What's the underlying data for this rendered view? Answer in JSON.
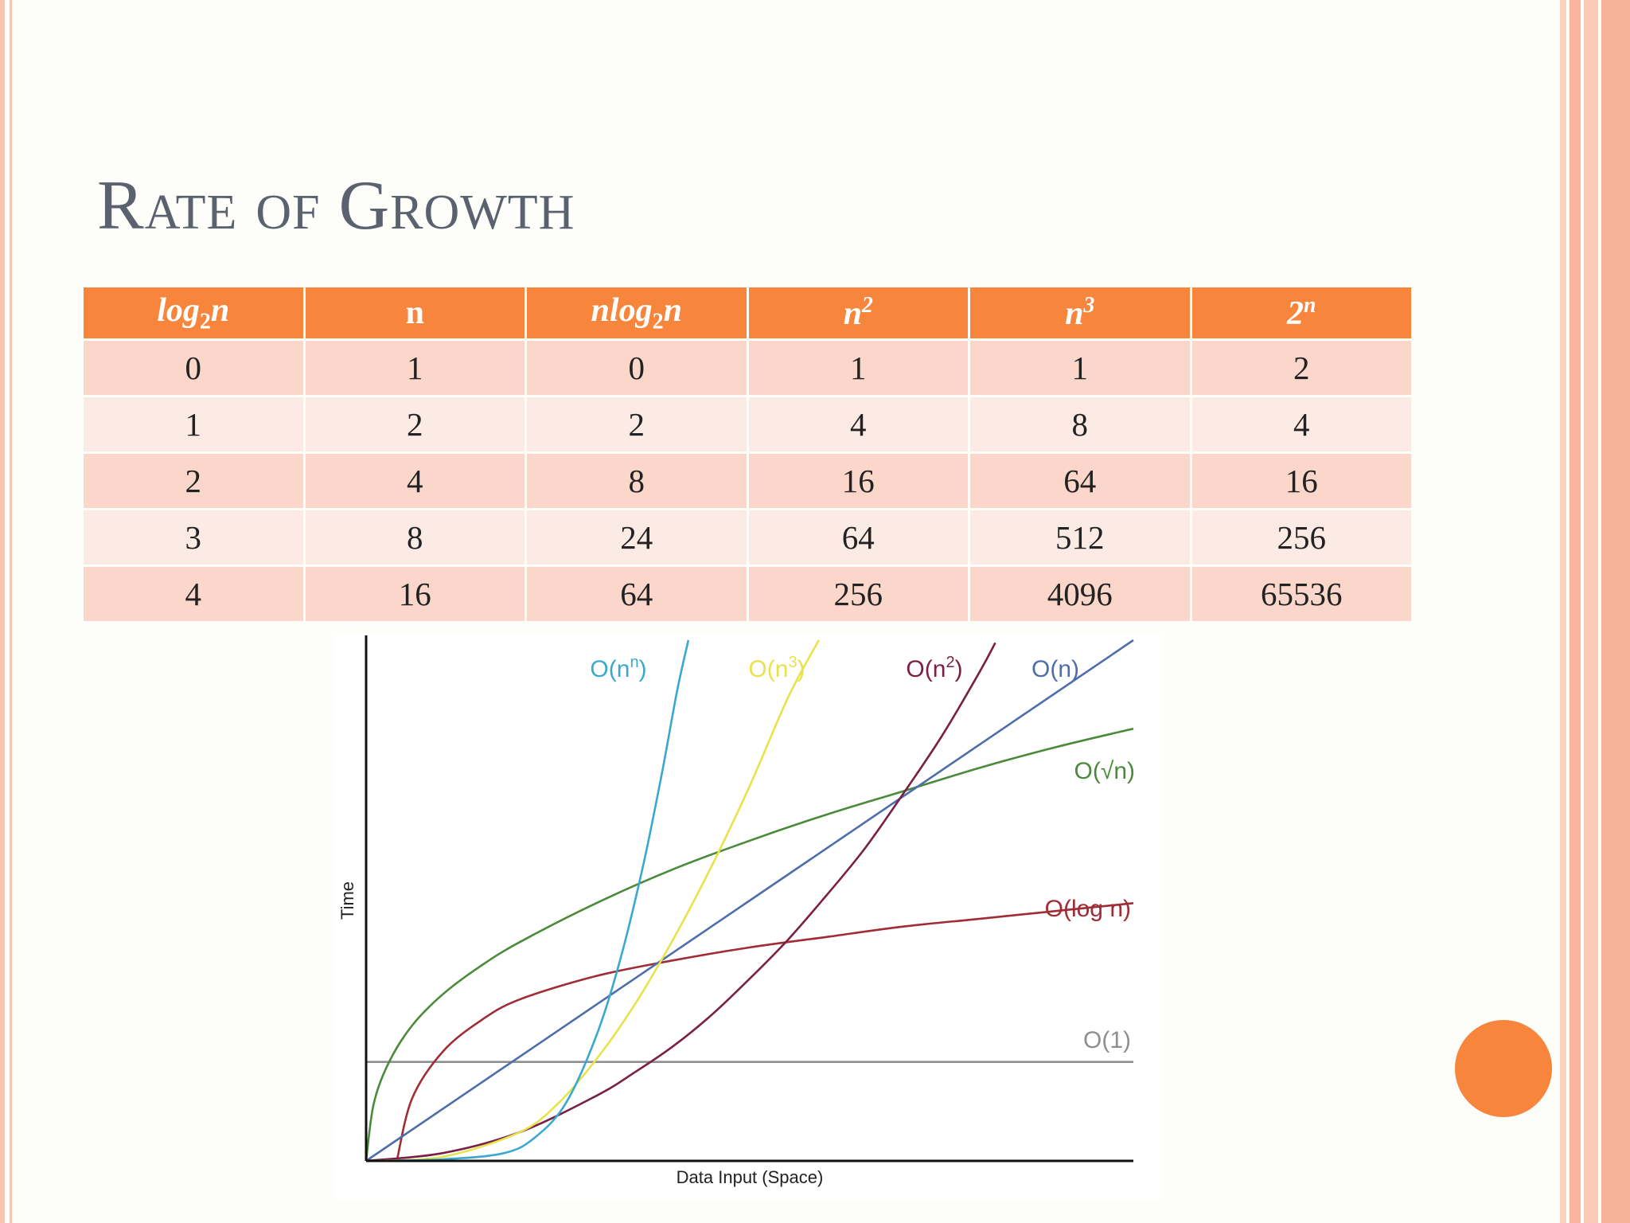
{
  "slide": {
    "title": "Rate of Growth",
    "colors": {
      "header_bg": "#f7853b",
      "row_odd": "#fbd7cb",
      "row_even": "#fcebe5",
      "accent_circle": "#f7853b",
      "title_text": "#5b616e"
    }
  },
  "table": {
    "headers": [
      {
        "base": "log",
        "sub": "2",
        "sup": "",
        "tail": "n"
      },
      {
        "base": "n",
        "sub": "",
        "sup": "",
        "tail": ""
      },
      {
        "base": "nlog",
        "sub": "2",
        "sup": "",
        "tail": "n"
      },
      {
        "base": "n",
        "sub": "",
        "sup": "2",
        "tail": ""
      },
      {
        "base": "n",
        "sub": "",
        "sup": "3",
        "tail": ""
      },
      {
        "base": "2",
        "sub": "",
        "sup": "n",
        "tail": ""
      }
    ],
    "rows": [
      [
        "0",
        "1",
        "0",
        "1",
        "1",
        "2"
      ],
      [
        "1",
        "2",
        "2",
        "4",
        "8",
        "4"
      ],
      [
        "2",
        "4",
        "8",
        "16",
        "64",
        "16"
      ],
      [
        "3",
        "8",
        "24",
        "64",
        "512",
        "256"
      ],
      [
        "4",
        "16",
        "64",
        "256",
        "4096",
        "65536"
      ]
    ]
  },
  "chart_data": {
    "type": "line",
    "title": "",
    "xlabel": "Data Input (Space)",
    "ylabel": "Time",
    "xlim": [
      0,
      10
    ],
    "ylim": [
      0,
      10
    ],
    "grid": false,
    "series": [
      {
        "name": "O(1)",
        "label_base": "O(1)",
        "label_sup": "",
        "label_tail": "",
        "color": "#8f8f8f",
        "x": [
          0,
          10
        ],
        "y": [
          1.9,
          1.9
        ]
      },
      {
        "name": "O(log n)",
        "label_base": "O(log n)",
        "label_sup": "",
        "label_tail": "",
        "color": "#a02c36",
        "x": [
          0.4,
          0.6,
          1,
          1.5,
          2,
          3,
          4,
          5,
          6,
          7,
          8,
          9,
          10
        ],
        "y": [
          0,
          1.2,
          2.1,
          2.7,
          3.1,
          3.55,
          3.85,
          4.1,
          4.3,
          4.5,
          4.65,
          4.8,
          4.95
        ]
      },
      {
        "name": "O(√n)",
        "label_base": "O(√n)",
        "label_sup": "",
        "label_tail": "",
        "color": "#4a8a3a",
        "x": [
          0,
          0.1,
          0.3,
          0.6,
          1,
          1.5,
          2,
          3,
          4,
          5,
          6,
          7,
          8,
          9,
          10
        ],
        "y": [
          0,
          1.1,
          1.9,
          2.6,
          3.2,
          3.75,
          4.2,
          4.95,
          5.6,
          6.15,
          6.65,
          7.1,
          7.55,
          7.95,
          8.3
        ]
      },
      {
        "name": "O(n)",
        "label_base": "O(n)",
        "label_sup": "",
        "label_tail": "",
        "color": "#4e6eab",
        "x": [
          0,
          10
        ],
        "y": [
          0,
          10
        ]
      },
      {
        "name": "O(n^2)",
        "label_base": "O(n",
        "label_sup": "2",
        "label_tail": ")",
        "color": "#7a1f45",
        "x": [
          0,
          1,
          2,
          3,
          3.5,
          4,
          4.5,
          5,
          5.5,
          6,
          6.5,
          7,
          7.5,
          8,
          8.2
        ],
        "y": [
          0,
          0.15,
          0.55,
          1.25,
          1.7,
          2.2,
          2.8,
          3.5,
          4.25,
          5.1,
          6.0,
          7.05,
          8.15,
          9.4,
          9.95
        ]
      },
      {
        "name": "O(n^3)",
        "label_base": "O(n",
        "label_sup": "3",
        "label_tail": ")",
        "color": "#e8e34a",
        "x": [
          0,
          1,
          2,
          2.5,
          3,
          3.5,
          4,
          4.5,
          5,
          5.5,
          5.9
        ],
        "y": [
          0,
          0.08,
          0.55,
          1.1,
          1.95,
          3.0,
          4.25,
          5.65,
          7.2,
          8.9,
          10
        ]
      },
      {
        "name": "O(n^n)",
        "label_base": "O(n",
        "label_sup": "n",
        "label_tail": ")",
        "color": "#3aa8cf",
        "x": [
          0,
          1,
          1.8,
          2.2,
          2.6,
          3.0,
          3.3,
          3.6,
          3.85,
          4.05,
          4.2
        ],
        "y": [
          0,
          0.03,
          0.15,
          0.45,
          1.1,
          2.4,
          3.8,
          5.6,
          7.4,
          9.0,
          10
        ]
      }
    ]
  }
}
